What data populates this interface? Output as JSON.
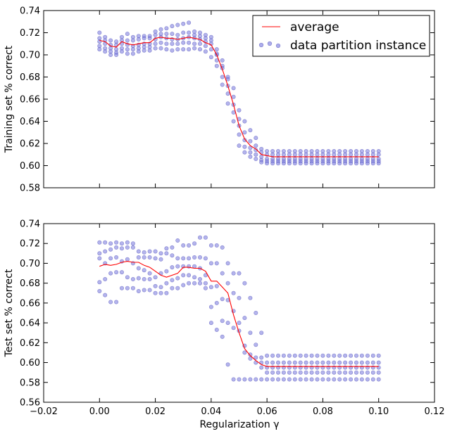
{
  "chart_data": [
    {
      "type": "line",
      "ylabel": "Training set % correct",
      "xlabel": "",
      "xlim": [
        -0.02,
        0.12
      ],
      "ylim": [
        0.58,
        0.74
      ],
      "yticks": [
        "0.58",
        "0.60",
        "0.62",
        "0.64",
        "0.66",
        "0.68",
        "0.70",
        "0.72",
        "0.74"
      ],
      "legend": {
        "position": "top-right",
        "entries": [
          "average",
          "data partition instance"
        ]
      },
      "series": [
        {
          "name": "average",
          "style": "line",
          "color": "#ff0000",
          "x": [
            0.0,
            0.002,
            0.004,
            0.006,
            0.008,
            0.01,
            0.012,
            0.014,
            0.016,
            0.018,
            0.02,
            0.022,
            0.024,
            0.026,
            0.028,
            0.03,
            0.032,
            0.034,
            0.036,
            0.038,
            0.04,
            0.042,
            0.044,
            0.046,
            0.048,
            0.05,
            0.052,
            0.054,
            0.056,
            0.058,
            0.06,
            0.062,
            0.064,
            0.066,
            0.068,
            0.07,
            0.072,
            0.074,
            0.076,
            0.078,
            0.08,
            0.082,
            0.084,
            0.086,
            0.088,
            0.09,
            0.092,
            0.094,
            0.096,
            0.098,
            0.1
          ],
          "y": [
            0.713,
            0.712,
            0.708,
            0.707,
            0.712,
            0.71,
            0.709,
            0.71,
            0.711,
            0.711,
            0.715,
            0.716,
            0.715,
            0.715,
            0.714,
            0.715,
            0.716,
            0.715,
            0.714,
            0.711,
            0.709,
            0.7,
            0.687,
            0.672,
            0.655,
            0.636,
            0.624,
            0.618,
            0.615,
            0.61,
            0.609,
            0.608,
            0.608,
            0.608,
            0.608,
            0.608,
            0.608,
            0.608,
            0.608,
            0.608,
            0.608,
            0.608,
            0.608,
            0.608,
            0.608,
            0.608,
            0.608,
            0.608,
            0.608,
            0.608,
            0.608
          ]
        },
        {
          "name": "data partition instance",
          "style": "scatter",
          "color": "#7777dd",
          "profiles": [
            [
              0.72,
              0.716,
              0.713,
              0.712,
              0.716,
              0.719,
              0.716,
              0.717,
              0.717,
              0.717,
              0.721,
              0.723,
              0.724,
              0.726,
              0.727,
              0.728,
              0.729,
              0.721,
              0.72,
              0.718,
              0.716,
              0.7,
              0.69,
              0.68,
              0.67,
              0.65,
              0.64,
              0.632,
              0.625,
              0.615,
              0.613,
              0.613,
              0.613,
              0.613,
              0.613,
              0.613,
              0.613,
              0.613,
              0.613,
              0.613,
              0.613,
              0.613,
              0.613,
              0.613,
              0.613,
              0.613,
              0.613,
              0.613,
              0.613,
              0.613,
              0.613
            ],
            [
              0.715,
              0.713,
              0.709,
              0.709,
              0.713,
              0.713,
              0.713,
              0.714,
              0.715,
              0.715,
              0.718,
              0.719,
              0.719,
              0.719,
              0.718,
              0.72,
              0.72,
              0.718,
              0.717,
              0.715,
              0.713,
              0.705,
              0.695,
              0.678,
              0.662,
              0.642,
              0.63,
              0.622,
              0.618,
              0.612,
              0.61,
              0.61,
              0.61,
              0.61,
              0.61,
              0.61,
              0.61,
              0.61,
              0.61,
              0.61,
              0.61,
              0.61,
              0.61,
              0.61,
              0.61,
              0.61,
              0.61,
              0.61,
              0.61,
              0.61,
              0.61
            ],
            [
              0.712,
              0.71,
              0.706,
              0.705,
              0.71,
              0.709,
              0.708,
              0.709,
              0.71,
              0.71,
              0.714,
              0.716,
              0.715,
              0.714,
              0.714,
              0.715,
              0.716,
              0.715,
              0.714,
              0.712,
              0.71,
              0.701,
              0.688,
              0.672,
              0.655,
              0.636,
              0.623,
              0.616,
              0.614,
              0.608,
              0.606,
              0.606,
              0.606,
              0.606,
              0.606,
              0.606,
              0.606,
              0.606,
              0.606,
              0.606,
              0.606,
              0.606,
              0.606,
              0.606,
              0.606,
              0.606,
              0.606,
              0.606,
              0.606,
              0.606,
              0.606
            ],
            [
              0.708,
              0.706,
              0.703,
              0.702,
              0.706,
              0.705,
              0.705,
              0.706,
              0.707,
              0.707,
              0.71,
              0.711,
              0.71,
              0.71,
              0.71,
              0.711,
              0.711,
              0.71,
              0.71,
              0.708,
              0.705,
              0.695,
              0.68,
              0.665,
              0.648,
              0.628,
              0.617,
              0.612,
              0.61,
              0.605,
              0.604,
              0.604,
              0.604,
              0.604,
              0.604,
              0.604,
              0.604,
              0.604,
              0.604,
              0.604,
              0.604,
              0.604,
              0.604,
              0.604,
              0.604,
              0.604,
              0.604,
              0.604,
              0.604,
              0.604,
              0.604
            ],
            [
              0.705,
              0.703,
              0.7,
              0.7,
              0.703,
              0.701,
              0.701,
              0.703,
              0.704,
              0.704,
              0.706,
              0.706,
              0.705,
              0.704,
              0.705,
              0.705,
              0.705,
              0.706,
              0.705,
              0.703,
              0.698,
              0.69,
              0.673,
              0.656,
              0.64,
              0.618,
              0.612,
              0.608,
              0.606,
              0.603,
              0.602,
              0.602,
              0.602,
              0.602,
              0.602,
              0.602,
              0.602,
              0.602,
              0.602,
              0.602,
              0.602,
              0.602,
              0.602,
              0.602,
              0.602,
              0.602,
              0.602,
              0.602,
              0.602,
              0.602,
              0.602
            ]
          ]
        }
      ]
    },
    {
      "type": "line",
      "ylabel": "Test set % correct",
      "xlabel": "Regularization γ",
      "xlim": [
        -0.02,
        0.12
      ],
      "ylim": [
        0.56,
        0.74
      ],
      "xticks": [
        "−0.02",
        "0.00",
        "0.02",
        "0.04",
        "0.06",
        "0.08",
        "0.10",
        "0.12"
      ],
      "yticks": [
        "0.56",
        "0.58",
        "0.60",
        "0.62",
        "0.64",
        "0.66",
        "0.68",
        "0.70",
        "0.72",
        "0.74"
      ],
      "series": [
        {
          "name": "average",
          "style": "line",
          "color": "#ff0000",
          "x": [
            0.0,
            0.002,
            0.004,
            0.006,
            0.008,
            0.01,
            0.012,
            0.014,
            0.016,
            0.018,
            0.02,
            0.022,
            0.024,
            0.026,
            0.028,
            0.03,
            0.032,
            0.034,
            0.036,
            0.038,
            0.04,
            0.042,
            0.044,
            0.046,
            0.048,
            0.05,
            0.052,
            0.054,
            0.056,
            0.058,
            0.06,
            0.062,
            0.064,
            0.066,
            0.068,
            0.07,
            0.072,
            0.074,
            0.076,
            0.078,
            0.08,
            0.082,
            0.084,
            0.086,
            0.088,
            0.09,
            0.092,
            0.094,
            0.096,
            0.098,
            0.1
          ],
          "y": [
            0.697,
            0.699,
            0.698,
            0.699,
            0.701,
            0.702,
            0.701,
            0.701,
            0.698,
            0.696,
            0.692,
            0.688,
            0.686,
            0.688,
            0.69,
            0.696,
            0.696,
            0.695,
            0.695,
            0.692,
            0.682,
            0.682,
            0.676,
            0.67,
            0.648,
            0.63,
            0.614,
            0.607,
            0.602,
            0.598,
            0.596,
            0.596,
            0.596,
            0.596,
            0.596,
            0.596,
            0.596,
            0.596,
            0.596,
            0.596,
            0.596,
            0.596,
            0.596,
            0.596,
            0.596,
            0.596,
            0.596,
            0.596,
            0.596,
            0.596,
            0.596
          ]
        },
        {
          "name": "data partition instance",
          "style": "scatter",
          "color": "#7777dd",
          "profiles": [
            [
              0.721,
              0.721,
              0.72,
              0.721,
              0.72,
              0.721,
              0.72,
              0.712,
              0.711,
              0.712,
              0.712,
              0.71,
              0.715,
              0.716,
              0.723,
              0.718,
              0.718,
              0.72,
              0.726,
              0.726,
              0.718,
              0.718,
              0.716,
              0.7,
              0.69,
              0.69,
              0.68,
              0.665,
              0.65,
              0.63,
              0.607,
              0.607,
              0.607,
              0.607,
              0.607,
              0.607,
              0.607,
              0.607,
              0.607,
              0.607,
              0.607,
              0.607,
              0.607,
              0.607,
              0.607,
              0.607,
              0.607,
              0.607,
              0.607,
              0.607,
              0.607
            ],
            [
              0.71,
              0.712,
              0.714,
              0.716,
              0.715,
              0.716,
              0.716,
              0.706,
              0.706,
              0.706,
              0.705,
              0.704,
              0.71,
              0.708,
              0.705,
              0.705,
              0.705,
              0.706,
              0.706,
              0.705,
              0.7,
              0.7,
              0.69,
              0.68,
              0.67,
              0.665,
              0.645,
              0.63,
              0.618,
              0.605,
              0.6,
              0.6,
              0.6,
              0.6,
              0.6,
              0.6,
              0.6,
              0.6,
              0.6,
              0.6,
              0.6,
              0.6,
              0.6,
              0.6,
              0.6,
              0.6,
              0.6,
              0.6,
              0.6,
              0.6,
              0.6
            ],
            [
              0.705,
              0.7,
              0.705,
              0.706,
              0.702,
              0.704,
              0.7,
              0.695,
              0.693,
              0.69,
              0.686,
              0.69,
              0.692,
              0.696,
              0.697,
              0.697,
              0.697,
              0.697,
              0.695,
              0.688,
              0.676,
              0.677,
              0.664,
              0.663,
              0.652,
              0.64,
              0.617,
              0.608,
              0.605,
              0.6,
              0.595,
              0.595,
              0.595,
              0.595,
              0.595,
              0.595,
              0.595,
              0.595,
              0.595,
              0.595,
              0.595,
              0.595,
              0.595,
              0.595,
              0.595,
              0.595,
              0.595,
              0.595,
              0.595,
              0.595,
              0.595
            ],
            [
              0.681,
              0.684,
              0.69,
              0.691,
              0.691,
              0.686,
              0.684,
              0.685,
              0.684,
              0.684,
              0.677,
              0.676,
              0.68,
              0.683,
              0.685,
              0.688,
              0.688,
              0.686,
              0.684,
              0.68,
              0.656,
              0.66,
              0.642,
              0.64,
              0.635,
              0.632,
              0.61,
              0.604,
              0.6,
              0.595,
              0.59,
              0.59,
              0.59,
              0.59,
              0.59,
              0.59,
              0.59,
              0.59,
              0.59,
              0.59,
              0.59,
              0.59,
              0.59,
              0.59,
              0.59,
              0.59,
              0.59,
              0.59,
              0.59,
              0.59,
              0.59
            ],
            [
              0.672,
              0.668,
              0.661,
              0.661,
              0.675,
              0.675,
              0.675,
              0.672,
              0.673,
              0.673,
              0.67,
              0.67,
              0.67,
              0.675,
              0.675,
              0.678,
              0.68,
              0.68,
              0.68,
              0.675,
              0.64,
              0.633,
              0.626,
              0.598,
              0.583,
              0.583,
              0.583,
              0.583,
              0.583,
              0.583,
              0.583,
              0.583,
              0.583,
              0.583,
              0.583,
              0.583,
              0.583,
              0.583,
              0.583,
              0.583,
              0.583,
              0.583,
              0.583,
              0.583,
              0.583,
              0.583,
              0.583,
              0.583,
              0.583,
              0.583,
              0.583
            ]
          ]
        }
      ]
    }
  ]
}
